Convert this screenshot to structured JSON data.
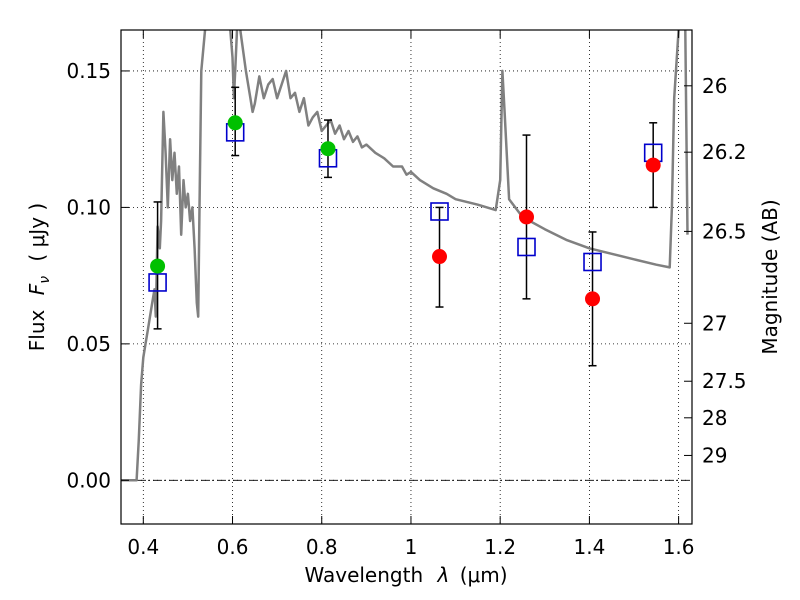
{
  "chart_data": {
    "type": "scatter",
    "xlabel_text": "Wavelength",
    "xlabel_symbol": "λ",
    "xlabel_unit": "(μm)",
    "ylabel_text": "Flux",
    "ylabel_symbol": "F",
    "ylabel_subscript": "ν",
    "ylabel_unit": "( μJy )",
    "y2label": "Magnitude (AB)",
    "xlim": [
      0.35,
      1.63
    ],
    "ylim": [
      -0.016,
      0.165
    ],
    "grid": true,
    "x_ticks": [
      {
        "value": 0.4,
        "label": "0.4"
      },
      {
        "value": 0.6,
        "label": "0.6"
      },
      {
        "value": 0.8,
        "label": "0.8"
      },
      {
        "value": 1.0,
        "label": "1"
      },
      {
        "value": 1.2,
        "label": "1.2"
      },
      {
        "value": 1.4,
        "label": "1.4"
      },
      {
        "value": 1.6,
        "label": "1.6"
      }
    ],
    "y_ticks": [
      {
        "value": 0.0,
        "label": "0.00"
      },
      {
        "value": 0.05,
        "label": "0.05"
      },
      {
        "value": 0.1,
        "label": "0.10"
      },
      {
        "value": 0.15,
        "label": "0.15"
      }
    ],
    "mag_ticks": [
      {
        "value": 26,
        "label": "26"
      },
      {
        "value": 26.2,
        "label": "26.2"
      },
      {
        "value": 26.5,
        "label": "26.5"
      },
      {
        "value": 27,
        "label": "27"
      },
      {
        "value": 27.5,
        "label": "27.5"
      },
      {
        "value": 28,
        "label": "28"
      },
      {
        "value": 29,
        "label": "29"
      }
    ],
    "observed_points": [
      {
        "x": 0.432,
        "y": 0.0785,
        "yerr_low": 0.0555,
        "yerr_high": 0.102,
        "color": "#00c000"
      },
      {
        "x": 0.606,
        "y": 0.131,
        "yerr_low": 0.119,
        "yerr_high": 0.144,
        "color": "#00c000"
      },
      {
        "x": 0.814,
        "y": 0.1215,
        "yerr_low": 0.111,
        "yerr_high": 0.132,
        "color": "#00c000"
      },
      {
        "x": 1.064,
        "y": 0.082,
        "yerr_low": 0.0635,
        "yerr_high": 0.1,
        "color": "#ff0000"
      },
      {
        "x": 1.259,
        "y": 0.0965,
        "yerr_low": 0.0665,
        "yerr_high": 0.1265,
        "color": "#ff0000"
      },
      {
        "x": 1.407,
        "y": 0.0665,
        "yerr_low": 0.042,
        "yerr_high": 0.091,
        "color": "#ff0000"
      },
      {
        "x": 1.543,
        "y": 0.1155,
        "yerr_low": 0.1,
        "yerr_high": 0.131,
        "color": "#ff0000"
      }
    ],
    "model_points": [
      {
        "x": 0.432,
        "y": 0.0725
      },
      {
        "x": 0.606,
        "y": 0.1275
      },
      {
        "x": 0.814,
        "y": 0.118
      },
      {
        "x": 1.064,
        "y": 0.0985
      },
      {
        "x": 1.259,
        "y": 0.0855
      },
      {
        "x": 1.407,
        "y": 0.08
      },
      {
        "x": 1.543,
        "y": 0.12
      }
    ],
    "sed_curve": {
      "color": "#808080",
      "x": [
        0.35,
        0.385,
        0.39,
        0.395,
        0.4,
        0.405,
        0.41,
        0.415,
        0.42,
        0.425,
        0.428,
        0.432,
        0.437,
        0.44,
        0.445,
        0.45,
        0.455,
        0.46,
        0.465,
        0.47,
        0.475,
        0.48,
        0.485,
        0.49,
        0.495,
        0.5,
        0.505,
        0.51,
        0.515,
        0.52,
        0.523,
        0.526,
        0.53,
        0.54,
        0.55,
        0.56,
        0.57,
        0.58,
        0.59,
        0.595,
        0.6,
        0.603,
        0.606,
        0.61,
        0.615,
        0.62,
        0.63,
        0.64,
        0.645,
        0.65,
        0.66,
        0.67,
        0.68,
        0.69,
        0.7,
        0.71,
        0.72,
        0.73,
        0.74,
        0.75,
        0.76,
        0.77,
        0.78,
        0.79,
        0.8,
        0.81,
        0.82,
        0.83,
        0.84,
        0.85,
        0.86,
        0.87,
        0.88,
        0.89,
        0.9,
        0.92,
        0.94,
        0.96,
        0.98,
        0.99,
        1.0,
        1.02,
        1.05,
        1.08,
        1.1,
        1.15,
        1.19,
        1.2,
        1.205,
        1.21,
        1.22,
        1.25,
        1.3,
        1.35,
        1.4,
        1.45,
        1.5,
        1.55,
        1.58,
        1.585,
        1.59,
        1.6,
        1.603,
        1.606,
        1.61,
        1.615,
        1.62
      ],
      "y": [
        0.0,
        0.0,
        0.015,
        0.035,
        0.045,
        0.05,
        0.055,
        0.06,
        0.065,
        0.07,
        0.06,
        0.093,
        0.085,
        0.095,
        0.135,
        0.12,
        0.1,
        0.125,
        0.11,
        0.12,
        0.105,
        0.115,
        0.09,
        0.11,
        0.1,
        0.105,
        0.095,
        0.1,
        0.085,
        0.065,
        0.06,
        0.1,
        0.15,
        0.168,
        0.17,
        0.17,
        0.17,
        0.17,
        0.17,
        0.165,
        0.155,
        0.14,
        0.15,
        0.165,
        0.168,
        0.162,
        0.15,
        0.14,
        0.135,
        0.138,
        0.148,
        0.14,
        0.145,
        0.147,
        0.14,
        0.145,
        0.15,
        0.14,
        0.142,
        0.135,
        0.14,
        0.13,
        0.133,
        0.135,
        0.128,
        0.13,
        0.132,
        0.127,
        0.13,
        0.125,
        0.128,
        0.124,
        0.126,
        0.122,
        0.123,
        0.12,
        0.118,
        0.115,
        0.115,
        0.112,
        0.113,
        0.11,
        0.107,
        0.105,
        0.103,
        0.101,
        0.099,
        0.11,
        0.15,
        0.135,
        0.103,
        0.0965,
        0.092,
        0.088,
        0.085,
        0.083,
        0.081,
        0.079,
        0.078,
        0.1,
        0.14,
        0.165,
        0.17,
        0.17,
        0.17,
        0.165,
        0.09
      ]
    }
  }
}
